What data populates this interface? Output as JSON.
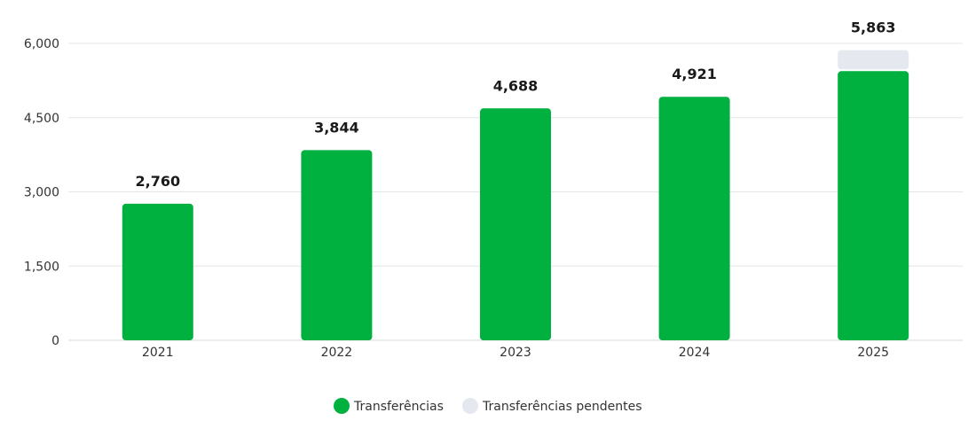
{
  "chart_data": {
    "type": "bar",
    "stacked": true,
    "categories": [
      "2021",
      "2022",
      "2023",
      "2024",
      "2025"
    ],
    "series": [
      {
        "name": "Transferências",
        "values": [
          2760,
          3844,
          4688,
          4921,
          5440
        ],
        "color": "#00b140"
      },
      {
        "name": "Transferências pendentes",
        "values": [
          0,
          0,
          0,
          0,
          423
        ],
        "color": "#e5e8ee"
      }
    ],
    "totals": [
      2760,
      3844,
      4688,
      4921,
      5863
    ],
    "total_labels": [
      "2,760",
      "3,844",
      "4,688",
      "4,921",
      "5,863"
    ],
    "ylim": [
      0,
      6000
    ],
    "yticks": [
      0,
      1500,
      3000,
      4500,
      6000
    ],
    "ytick_labels": [
      "0",
      "1,500",
      "3,000",
      "4,500",
      "6,000"
    ],
    "grid": true,
    "legend_position": "bottom-center",
    "title": "",
    "xlabel": "",
    "ylabel": ""
  }
}
